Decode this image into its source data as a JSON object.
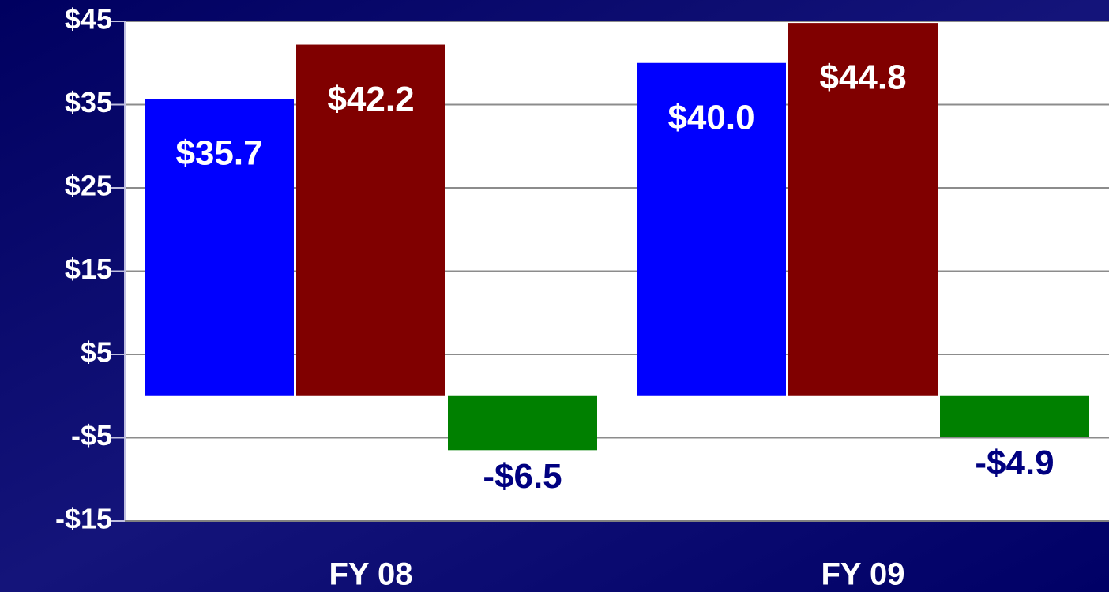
{
  "chart_data": {
    "type": "bar",
    "categories": [
      "FY 08",
      "FY 09"
    ],
    "series": [
      {
        "color": "#0000ff",
        "values": [
          35.7,
          40.0
        ],
        "value_labels": [
          "$35.7",
          "$40.0"
        ]
      },
      {
        "color": "#800000",
        "values": [
          42.2,
          44.8
        ],
        "value_labels": [
          "$42.2",
          "$44.8"
        ]
      },
      {
        "color": "#008000",
        "values": [
          -6.5,
          -4.9
        ],
        "value_labels": [
          "-$6.5",
          "-$4.9"
        ]
      }
    ],
    "ylim": [
      -15,
      45
    ],
    "yticks": [
      {
        "value": -15,
        "label": "-$15"
      },
      {
        "value": -5,
        "label": "-$5"
      },
      {
        "value": 5,
        "label": "$5"
      },
      {
        "value": 15,
        "label": "$15"
      },
      {
        "value": 25,
        "label": "$25"
      },
      {
        "value": 35,
        "label": "$35"
      },
      {
        "value": 45,
        "label": "$45"
      }
    ],
    "grid": true
  }
}
